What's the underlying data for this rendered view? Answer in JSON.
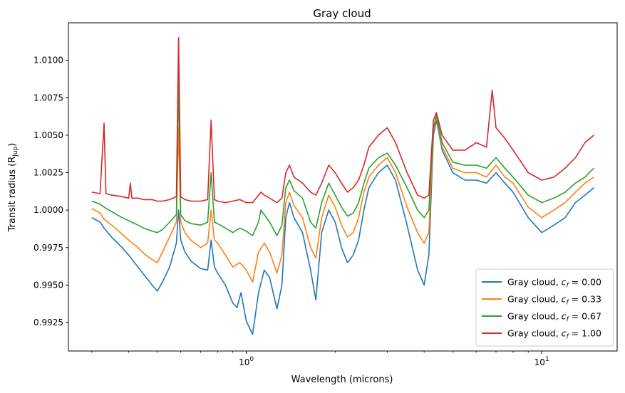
{
  "chart_data": {
    "type": "line",
    "title": "Gray cloud",
    "xlabel": "Wavelength (microns)",
    "ylabel": "Transit radius (R",
    "ylabel_sub": "Jup",
    "ylabel_close": ")",
    "xscale": "log",
    "xlim": [
      0.25,
      18
    ],
    "ylim": [
      0.9906,
      1.0125
    ],
    "x_ticks": [
      {
        "value": 1,
        "base": "10",
        "exp": "0"
      },
      {
        "value": 10,
        "base": "10",
        "exp": "1"
      }
    ],
    "y_ticks": [
      {
        "value": 0.9925,
        "label": "0.9925"
      },
      {
        "value": 0.995,
        "label": "0.9950"
      },
      {
        "value": 0.9975,
        "label": "0.9975"
      },
      {
        "value": 1.0,
        "label": "1.0000"
      },
      {
        "value": 1.0025,
        "label": "1.0025"
      },
      {
        "value": 1.005,
        "label": "1.0050"
      },
      {
        "value": 1.0075,
        "label": "1.0075"
      },
      {
        "value": 1.01,
        "label": "1.0100"
      }
    ],
    "grid": false,
    "legend_position": "lower right",
    "series": [
      {
        "name": "Gray cloud, ",
        "math_label": "c",
        "math_sub": "f",
        "math_value": " = 0.00",
        "color": "#1f77b4",
        "points": [
          [
            0.3,
            0.9995
          ],
          [
            0.32,
            0.9992
          ],
          [
            0.33,
            0.9988
          ],
          [
            0.35,
            0.9982
          ],
          [
            0.38,
            0.9975
          ],
          [
            0.4,
            0.997
          ],
          [
            0.43,
            0.9962
          ],
          [
            0.45,
            0.9957
          ],
          [
            0.48,
            0.995
          ],
          [
            0.5,
            0.9946
          ],
          [
            0.52,
            0.9952
          ],
          [
            0.55,
            0.9962
          ],
          [
            0.58,
            0.9978
          ],
          [
            0.59,
            1.0
          ],
          [
            0.6,
            0.998
          ],
          [
            0.62,
            0.9972
          ],
          [
            0.65,
            0.9966
          ],
          [
            0.7,
            0.9961
          ],
          [
            0.74,
            0.996
          ],
          [
            0.76,
            0.998
          ],
          [
            0.78,
            0.9962
          ],
          [
            0.8,
            0.9958
          ],
          [
            0.85,
            0.995
          ],
          [
            0.9,
            0.9938
          ],
          [
            0.93,
            0.9935
          ],
          [
            0.96,
            0.9945
          ],
          [
            1.0,
            0.9926
          ],
          [
            1.05,
            0.9917
          ],
          [
            1.1,
            0.9945
          ],
          [
            1.15,
            0.996
          ],
          [
            1.2,
            0.9955
          ],
          [
            1.27,
            0.9934
          ],
          [
            1.32,
            0.995
          ],
          [
            1.36,
            0.9995
          ],
          [
            1.4,
            1.0005
          ],
          [
            1.45,
            0.9995
          ],
          [
            1.55,
            0.9985
          ],
          [
            1.65,
            0.996
          ],
          [
            1.72,
            0.994
          ],
          [
            1.8,
            0.9985
          ],
          [
            1.9,
            1.0
          ],
          [
            2.0,
            0.9992
          ],
          [
            2.1,
            0.9975
          ],
          [
            2.2,
            0.9965
          ],
          [
            2.3,
            0.997
          ],
          [
            2.4,
            0.998
          ],
          [
            2.5,
            1.0
          ],
          [
            2.6,
            1.0015
          ],
          [
            2.8,
            1.0025
          ],
          [
            3.0,
            1.003
          ],
          [
            3.2,
            1.002
          ],
          [
            3.5,
            0.999
          ],
          [
            3.8,
            0.996
          ],
          [
            4.0,
            0.995
          ],
          [
            4.15,
            0.997
          ],
          [
            4.3,
            1.005
          ],
          [
            4.4,
            1.006
          ],
          [
            4.6,
            1.004
          ],
          [
            5.0,
            1.0025
          ],
          [
            5.5,
            1.002
          ],
          [
            6.0,
            1.002
          ],
          [
            6.5,
            1.0018
          ],
          [
            7.0,
            1.0025
          ],
          [
            7.5,
            1.0018
          ],
          [
            8.0,
            1.0012
          ],
          [
            9.0,
            0.9995
          ],
          [
            10.0,
            0.9985
          ],
          [
            11.0,
            0.999
          ],
          [
            12.0,
            0.9995
          ],
          [
            13.0,
            1.0005
          ],
          [
            14.0,
            1.001
          ],
          [
            15.0,
            1.0015
          ]
        ]
      },
      {
        "name": "Gray cloud, ",
        "math_label": "c",
        "math_sub": "f",
        "math_value": " = 0.33",
        "color": "#ff7f0e",
        "points": [
          [
            0.3,
            1.0001
          ],
          [
            0.32,
            0.9998
          ],
          [
            0.33,
            0.9994
          ],
          [
            0.35,
            0.999
          ],
          [
            0.38,
            0.9984
          ],
          [
            0.4,
            0.998
          ],
          [
            0.43,
            0.9975
          ],
          [
            0.45,
            0.9971
          ],
          [
            0.48,
            0.9967
          ],
          [
            0.5,
            0.9965
          ],
          [
            0.52,
            0.9972
          ],
          [
            0.55,
            0.9982
          ],
          [
            0.58,
            0.9992
          ],
          [
            0.59,
            1.0055
          ],
          [
            0.6,
            0.9992
          ],
          [
            0.62,
            0.9985
          ],
          [
            0.65,
            0.998
          ],
          [
            0.7,
            0.9975
          ],
          [
            0.74,
            0.9978
          ],
          [
            0.76,
            1.0
          ],
          [
            0.78,
            0.998
          ],
          [
            0.8,
            0.9978
          ],
          [
            0.85,
            0.997
          ],
          [
            0.9,
            0.9962
          ],
          [
            0.95,
            0.9965
          ],
          [
            1.0,
            0.996
          ],
          [
            1.05,
            0.9952
          ],
          [
            1.1,
            0.9972
          ],
          [
            1.15,
            0.9978
          ],
          [
            1.2,
            0.9972
          ],
          [
            1.27,
            0.9958
          ],
          [
            1.32,
            0.997
          ],
          [
            1.36,
            1.0005
          ],
          [
            1.4,
            1.0012
          ],
          [
            1.45,
            1.0003
          ],
          [
            1.55,
            0.9995
          ],
          [
            1.65,
            0.9975
          ],
          [
            1.72,
            0.9968
          ],
          [
            1.8,
            0.9995
          ],
          [
            1.9,
            1.001
          ],
          [
            2.0,
            1.0002
          ],
          [
            2.1,
            0.999
          ],
          [
            2.2,
            0.9982
          ],
          [
            2.3,
            0.9985
          ],
          [
            2.4,
            0.9995
          ],
          [
            2.5,
            1.0012
          ],
          [
            2.6,
            1.0022
          ],
          [
            2.8,
            1.003
          ],
          [
            3.0,
            1.0035
          ],
          [
            3.2,
            1.0025
          ],
          [
            3.5,
            1.0002
          ],
          [
            3.8,
            0.9985
          ],
          [
            4.0,
            0.9978
          ],
          [
            4.15,
            0.9985
          ],
          [
            4.3,
            1.0053
          ],
          [
            4.4,
            1.0062
          ],
          [
            4.6,
            1.0042
          ],
          [
            5.0,
            1.0028
          ],
          [
            5.5,
            1.0025
          ],
          [
            6.0,
            1.0025
          ],
          [
            6.5,
            1.0022
          ],
          [
            7.0,
            1.003
          ],
          [
            7.5,
            1.0022
          ],
          [
            8.0,
            1.0018
          ],
          [
            9.0,
            1.0002
          ],
          [
            10.0,
            0.9995
          ],
          [
            11.0,
            1.0
          ],
          [
            12.0,
            1.0005
          ],
          [
            13.0,
            1.0012
          ],
          [
            14.0,
            1.0018
          ],
          [
            15.0,
            1.0022
          ]
        ]
      },
      {
        "name": "Gray cloud, ",
        "math_label": "c",
        "math_sub": "f",
        "math_value": " = 0.67",
        "color": "#2ca02c",
        "points": [
          [
            0.3,
            1.0006
          ],
          [
            0.32,
            1.0004
          ],
          [
            0.33,
            1.0002
          ],
          [
            0.35,
            0.9999
          ],
          [
            0.38,
            0.9995
          ],
          [
            0.4,
            0.9993
          ],
          [
            0.43,
            0.999
          ],
          [
            0.45,
            0.9988
          ],
          [
            0.48,
            0.9986
          ],
          [
            0.5,
            0.9985
          ],
          [
            0.52,
            0.9987
          ],
          [
            0.55,
            0.9992
          ],
          [
            0.58,
            0.9997
          ],
          [
            0.59,
            1.0085
          ],
          [
            0.6,
            0.9997
          ],
          [
            0.62,
            0.9993
          ],
          [
            0.65,
            0.9991
          ],
          [
            0.7,
            0.999
          ],
          [
            0.74,
            0.9992
          ],
          [
            0.76,
            1.0025
          ],
          [
            0.78,
            0.9992
          ],
          [
            0.8,
            0.9991
          ],
          [
            0.85,
            0.9988
          ],
          [
            0.9,
            0.9985
          ],
          [
            0.95,
            0.9988
          ],
          [
            1.0,
            0.9986
          ],
          [
            1.05,
            0.9983
          ],
          [
            1.1,
            0.9992
          ],
          [
            1.12,
            1.0
          ],
          [
            1.15,
            0.9997
          ],
          [
            1.2,
            0.9992
          ],
          [
            1.27,
            0.9983
          ],
          [
            1.32,
            0.999
          ],
          [
            1.36,
            1.0015
          ],
          [
            1.4,
            1.002
          ],
          [
            1.45,
            1.0013
          ],
          [
            1.55,
            1.0008
          ],
          [
            1.65,
            0.9992
          ],
          [
            1.72,
            0.9988
          ],
          [
            1.8,
            1.0005
          ],
          [
            1.9,
            1.0018
          ],
          [
            2.0,
            1.001
          ],
          [
            2.1,
            1.0002
          ],
          [
            2.2,
            0.9996
          ],
          [
            2.3,
            0.9998
          ],
          [
            2.4,
            1.0005
          ],
          [
            2.5,
            1.0018
          ],
          [
            2.6,
            1.0028
          ],
          [
            2.8,
            1.0035
          ],
          [
            3.0,
            1.0038
          ],
          [
            3.2,
            1.003
          ],
          [
            3.5,
            1.0015
          ],
          [
            3.8,
            1.0
          ],
          [
            4.0,
            0.9995
          ],
          [
            4.15,
            1.0
          ],
          [
            4.3,
            1.0055
          ],
          [
            4.4,
            1.0063
          ],
          [
            4.6,
            1.0045
          ],
          [
            5.0,
            1.0032
          ],
          [
            5.5,
            1.003
          ],
          [
            6.0,
            1.003
          ],
          [
            6.5,
            1.0028
          ],
          [
            7.0,
            1.0035
          ],
          [
            7.5,
            1.0028
          ],
          [
            8.0,
            1.0022
          ],
          [
            9.0,
            1.001
          ],
          [
            10.0,
            1.0005
          ],
          [
            11.0,
            1.0008
          ],
          [
            12.0,
            1.0012
          ],
          [
            13.0,
            1.0018
          ],
          [
            14.0,
            1.0022
          ],
          [
            15.0,
            1.0028
          ]
        ]
      },
      {
        "name": "Gray cloud, ",
        "math_label": "c",
        "math_sub": "f",
        "math_value": " = 1.00",
        "color": "#d62728",
        "points": [
          [
            0.3,
            1.0012
          ],
          [
            0.32,
            1.0011
          ],
          [
            0.33,
            1.0058
          ],
          [
            0.335,
            1.0011
          ],
          [
            0.35,
            1.001
          ],
          [
            0.38,
            1.0009
          ],
          [
            0.4,
            1.0008
          ],
          [
            0.405,
            1.0018
          ],
          [
            0.41,
            1.0008
          ],
          [
            0.43,
            1.0008
          ],
          [
            0.45,
            1.0007
          ],
          [
            0.48,
            1.0007
          ],
          [
            0.5,
            1.0006
          ],
          [
            0.52,
            1.0006
          ],
          [
            0.55,
            1.0007
          ],
          [
            0.58,
            1.0009
          ],
          [
            0.59,
            1.0115
          ],
          [
            0.6,
            1.0009
          ],
          [
            0.62,
            1.0007
          ],
          [
            0.65,
            1.0006
          ],
          [
            0.7,
            1.0006
          ],
          [
            0.74,
            1.0007
          ],
          [
            0.76,
            1.006
          ],
          [
            0.78,
            1.0007
          ],
          [
            0.8,
            1.0006
          ],
          [
            0.85,
            1.0005
          ],
          [
            0.9,
            1.0006
          ],
          [
            0.95,
            1.0007
          ],
          [
            1.0,
            1.0005
          ],
          [
            1.05,
            1.0005
          ],
          [
            1.1,
            1.001
          ],
          [
            1.12,
            1.0012
          ],
          [
            1.15,
            1.001
          ],
          [
            1.2,
            1.0008
          ],
          [
            1.27,
            1.0005
          ],
          [
            1.32,
            1.0008
          ],
          [
            1.36,
            1.0025
          ],
          [
            1.4,
            1.003
          ],
          [
            1.45,
            1.0022
          ],
          [
            1.55,
            1.0018
          ],
          [
            1.65,
            1.0012
          ],
          [
            1.72,
            1.001
          ],
          [
            1.8,
            1.0018
          ],
          [
            1.9,
            1.003
          ],
          [
            2.0,
            1.0025
          ],
          [
            2.1,
            1.0018
          ],
          [
            2.2,
            1.0012
          ],
          [
            2.3,
            1.0015
          ],
          [
            2.4,
            1.002
          ],
          [
            2.5,
            1.003
          ],
          [
            2.6,
            1.0042
          ],
          [
            2.8,
            1.005
          ],
          [
            3.0,
            1.0055
          ],
          [
            3.2,
            1.0045
          ],
          [
            3.5,
            1.0025
          ],
          [
            3.8,
            1.001
          ],
          [
            4.0,
            1.0008
          ],
          [
            4.15,
            1.001
          ],
          [
            4.3,
            1.006
          ],
          [
            4.4,
            1.0065
          ],
          [
            4.6,
            1.005
          ],
          [
            5.0,
            1.004
          ],
          [
            5.5,
            1.004
          ],
          [
            6.0,
            1.0045
          ],
          [
            6.5,
            1.0042
          ],
          [
            6.8,
            1.008
          ],
          [
            7.0,
            1.0055
          ],
          [
            7.5,
            1.0048
          ],
          [
            8.0,
            1.004
          ],
          [
            9.0,
            1.0025
          ],
          [
            10.0,
            1.002
          ],
          [
            11.0,
            1.0022
          ],
          [
            12.0,
            1.0028
          ],
          [
            13.0,
            1.0035
          ],
          [
            14.0,
            1.0045
          ],
          [
            15.0,
            1.005
          ]
        ]
      }
    ]
  }
}
